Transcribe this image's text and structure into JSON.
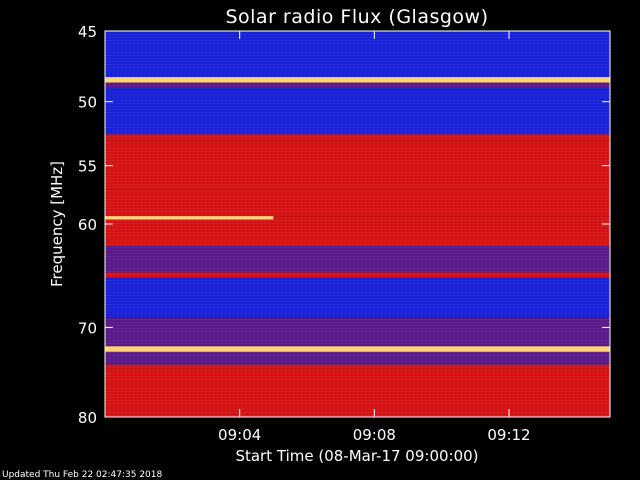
{
  "footer": {
    "updated": "Updated Thu Feb 22 02:47:35 2018"
  },
  "colors": {
    "background": "#000000",
    "text": "#ffffff",
    "strong_emission": "#ffd27a",
    "high": "#d41414",
    "medium": "#5a1a8a",
    "low": "#1a22d8"
  },
  "chart_data": {
    "type": "heatmap",
    "title": "Solar radio Flux (Glasgow)",
    "xlabel": "Start Time (08-Mar-17 09:00:00)",
    "ylabel": "Frequency [MHz]",
    "xlim": [
      "09:00:00",
      "09:15:00"
    ],
    "ylim": [
      80,
      45
    ],
    "x_ticks": [
      "09:04",
      "09:08",
      "09:12"
    ],
    "y_ticks": [
      "45",
      "50",
      "55",
      "60",
      "70",
      "80"
    ],
    "y_scale": "log",
    "grid": false,
    "legend": "none",
    "bands": [
      {
        "f_start": 45.0,
        "f_end": 48.2,
        "level": "low"
      },
      {
        "f_start": 48.2,
        "f_end": 48.6,
        "level": "strong"
      },
      {
        "f_start": 48.6,
        "f_end": 49.0,
        "level": "medium"
      },
      {
        "f_start": 49.0,
        "f_end": 52.5,
        "level": "low"
      },
      {
        "f_start": 52.5,
        "f_end": 53.0,
        "level": "high"
      },
      {
        "f_start": 53.0,
        "f_end": 57.0,
        "level": "high"
      },
      {
        "f_start": 57.0,
        "f_end": 59.3,
        "level": "high"
      },
      {
        "f_start": 59.3,
        "f_end": 59.6,
        "level": "strong",
        "t_end": "09:05:00"
      },
      {
        "f_start": 59.6,
        "f_end": 62.0,
        "level": "high"
      },
      {
        "f_start": 62.0,
        "f_end": 64.5,
        "level": "medium"
      },
      {
        "f_start": 64.5,
        "f_end": 65.0,
        "level": "high"
      },
      {
        "f_start": 65.0,
        "f_end": 69.0,
        "level": "low"
      },
      {
        "f_start": 69.0,
        "f_end": 72.0,
        "level": "medium"
      },
      {
        "f_start": 72.0,
        "f_end": 72.6,
        "level": "strong"
      },
      {
        "f_start": 72.6,
        "f_end": 74.0,
        "level": "medium"
      },
      {
        "f_start": 74.0,
        "f_end": 74.6,
        "level": "high"
      },
      {
        "f_start": 74.6,
        "f_end": 80.0,
        "level": "high"
      }
    ]
  }
}
